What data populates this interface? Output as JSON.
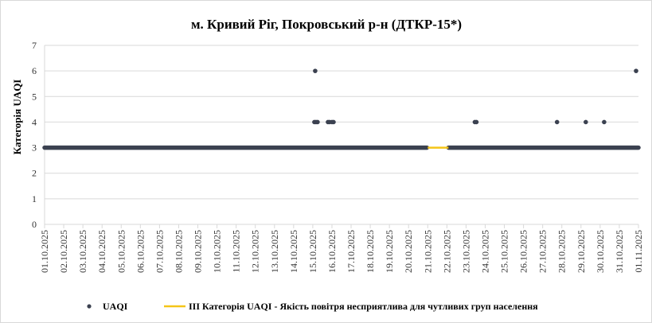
{
  "chart_data": {
    "type": "scatter",
    "title": "м. Кривий Ріг, Покровський р-н (ДТКР-15*)",
    "xlabel": "",
    "ylabel": "Категорія UAQI",
    "ylim": [
      0,
      7
    ],
    "yticks": [
      "0",
      "1",
      "2",
      "3",
      "4",
      "5",
      "6",
      "7"
    ],
    "x_start": "01.10.2025",
    "x_end": "01.11.2025",
    "xticks": [
      "01.10.2025",
      "02.10.2025",
      "03.10.2025",
      "04.10.2025",
      "05.10.2025",
      "06.10.2025",
      "07.10.2025",
      "08.10.2025",
      "09.10.2025",
      "10.10.2025",
      "11.10.2025",
      "12.10.2025",
      "13.10.2025",
      "14.10.2025",
      "15.10.2025",
      "16.10.2025",
      "17.10.2025",
      "18.10.2025",
      "19.10.2025",
      "20.10.2025",
      "21.10.2025",
      "22.10.2025",
      "23.10.2025",
      "24.10.2025",
      "25.10.2025",
      "26.10.2025",
      "27.10.2025",
      "28.10.2025",
      "29.10.2025",
      "30.10.2025",
      "31.10.2025",
      "01.11.2025"
    ],
    "grid": "horizontal",
    "legend_position": "bottom",
    "series": [
      {
        "name": "UAQI",
        "color": "#3b4150",
        "marker": "dot",
        "baseline_value": 3,
        "baseline_ranges": [
          [
            "01.10.2025 00:00",
            "20.10.2025 23:00"
          ],
          [
            "22.10.2025 02:00",
            "01.11.2025 00:00"
          ]
        ],
        "points": [
          {
            "x": "15.10.2025 02:00",
            "y": 4
          },
          {
            "x": "15.10.2025 04:00",
            "y": 4
          },
          {
            "x": "15.10.2025 06:00",
            "y": 4
          },
          {
            "x": "15.10.2025 03:00",
            "y": 6
          },
          {
            "x": "15.10.2025 19:00",
            "y": 4
          },
          {
            "x": "15.10.2025 21:00",
            "y": 4
          },
          {
            "x": "16.10.2025 00:00",
            "y": 4
          },
          {
            "x": "16.10.2025 02:00",
            "y": 4
          },
          {
            "x": "23.10.2025 11:00",
            "y": 4
          },
          {
            "x": "23.10.2025 13:00",
            "y": 4
          },
          {
            "x": "27.10.2025 18:00",
            "y": 4
          },
          {
            "x": "29.10.2025 06:00",
            "y": 4
          },
          {
            "x": "30.10.2025 05:00",
            "y": 4
          },
          {
            "x": "31.10.2025 21:00",
            "y": 6
          }
        ]
      },
      {
        "name": "ІІІ Категорія UAQI - Якість повітря несприятлива для чутливих груп населення",
        "color": "#f5c518",
        "marker": "line",
        "value": 3,
        "range": [
          "21.10.2025 00:00",
          "22.10.2025 02:00"
        ]
      }
    ]
  }
}
